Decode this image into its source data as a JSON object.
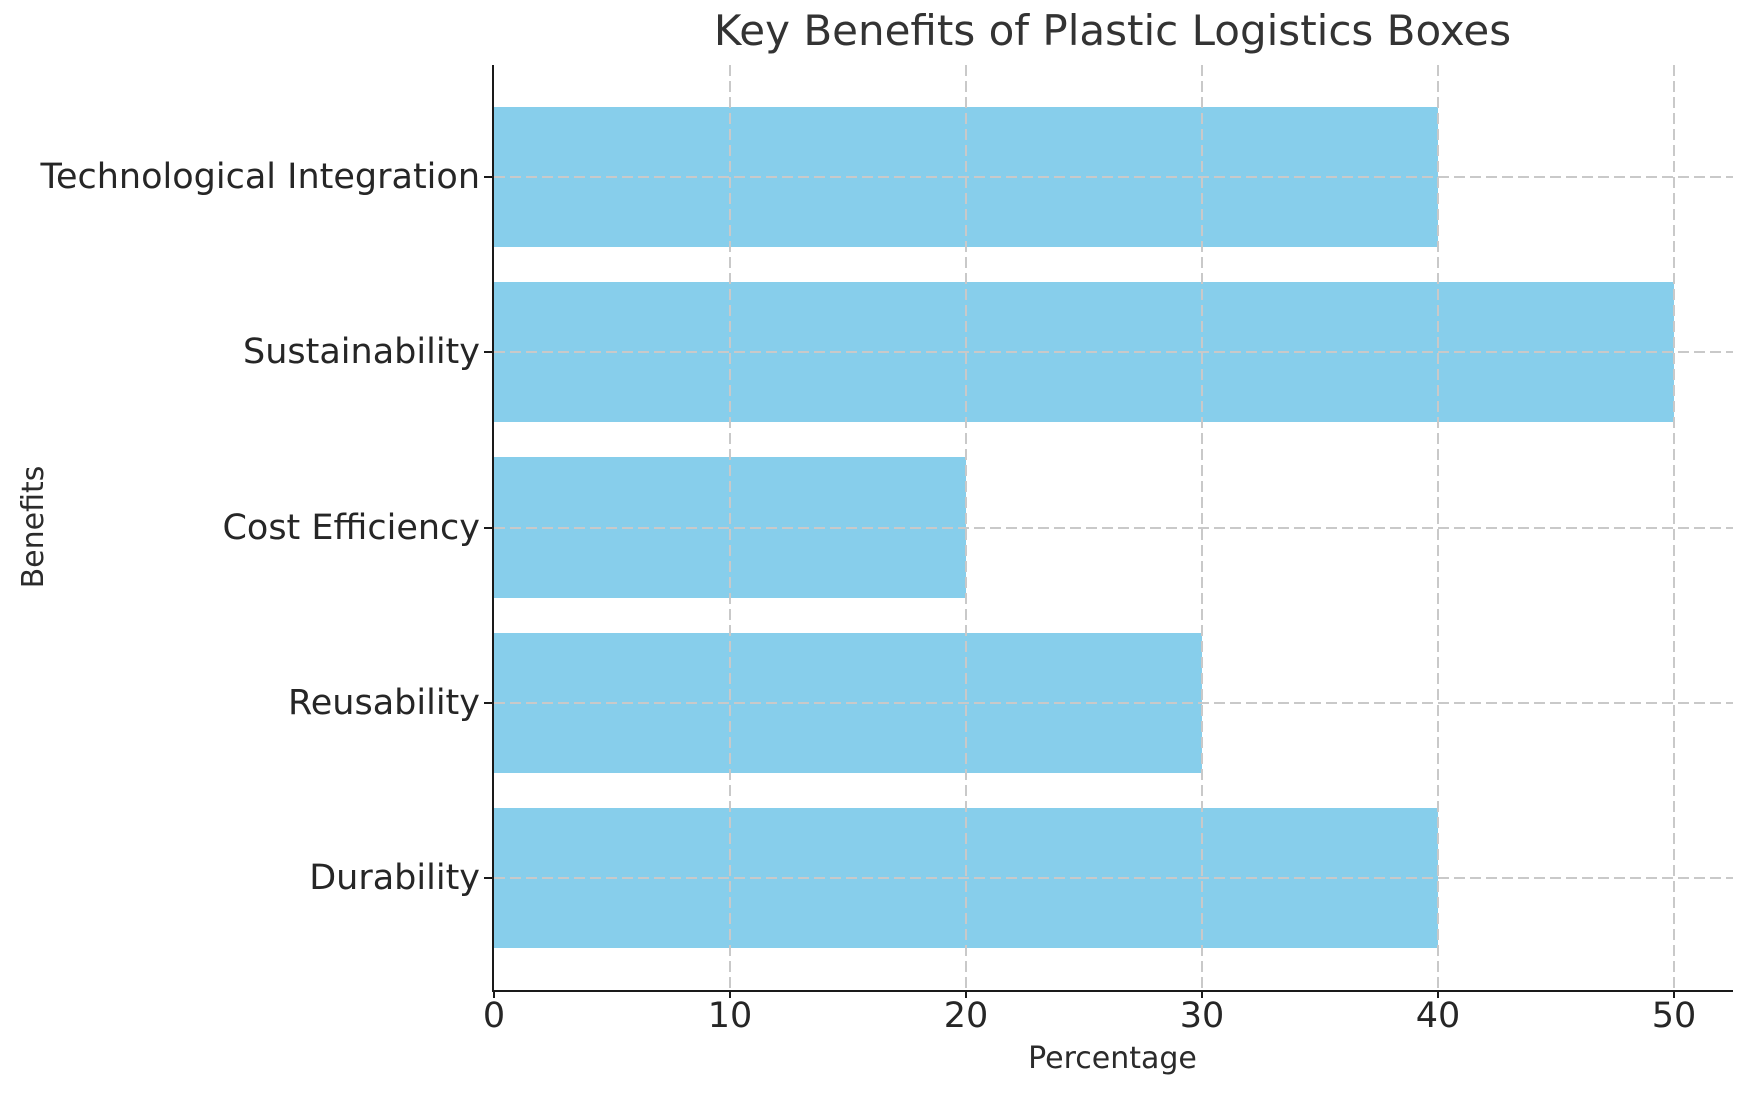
{
  "chart_data": {
    "type": "bar",
    "orientation": "horizontal",
    "title": "Key Benefits of Plastic Logistics Boxes",
    "xlabel": "Percentage",
    "ylabel": "Benefits",
    "category_order": "top-to-bottom",
    "categories": [
      "Technological Integration",
      "Sustainability",
      "Cost Efficiency",
      "Reusability",
      "Durability"
    ],
    "values": [
      40,
      50,
      20,
      30,
      40
    ],
    "x_ticks": [
      0,
      10,
      20,
      30,
      40,
      50
    ],
    "x_tick_labels": [
      "0",
      "10",
      "20",
      "30",
      "40",
      "50"
    ],
    "xlim": [
      0,
      52.5
    ],
    "ylim_units": [
      -0.64,
      4.64
    ],
    "bar_height_units": 0.8,
    "bar_color": "#87ceeb",
    "grid": "dashed",
    "grid_on": true,
    "grid_above_bars": true,
    "grid_color": "#c9c9c9",
    "axis_color": "#1a1a1a",
    "tick_text_color": "#262626",
    "label_text_color": "#2b2b2b",
    "title_text_color": "#333333",
    "background_color": "#ffffff",
    "legend_position": "none"
  }
}
